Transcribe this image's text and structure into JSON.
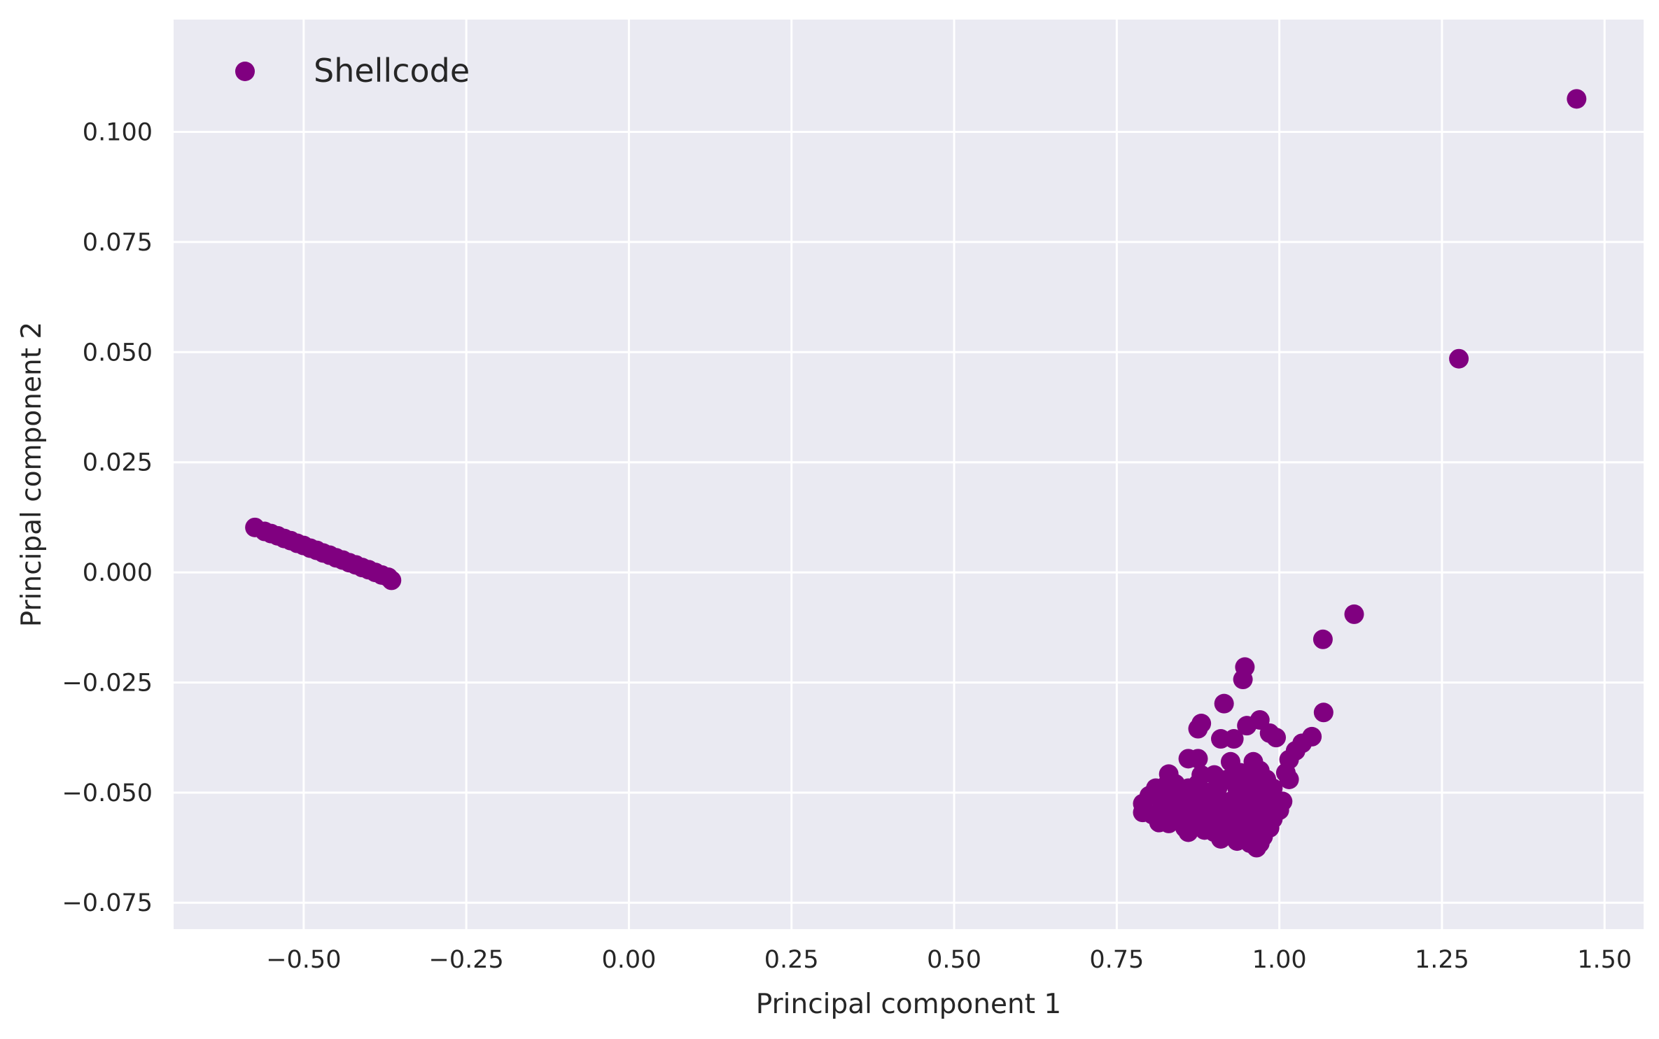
{
  "chart_data": {
    "type": "scatter",
    "xlabel": "Principal component 1",
    "ylabel": "Principal component 2",
    "xlim": [
      -0.7,
      1.56
    ],
    "ylim": [
      -0.081,
      0.1255
    ],
    "xticks": [
      -0.5,
      -0.25,
      0.0,
      0.25,
      0.5,
      0.75,
      1.0,
      1.25,
      1.5
    ],
    "xtick_labels": [
      "−0.50",
      "−0.25",
      "0.00",
      "0.25",
      "0.50",
      "0.75",
      "1.00",
      "1.25",
      "1.50"
    ],
    "yticks": [
      0.1,
      0.075,
      0.05,
      0.025,
      0.0,
      -0.025,
      -0.05,
      -0.075
    ],
    "ytick_labels": [
      "0.100",
      "0.075",
      "0.050",
      "0.025",
      "0.000",
      "−0.025",
      "−0.050",
      "−0.075"
    ],
    "grid": true,
    "legend_position": "top-left",
    "colors": {
      "plot_background": "#eaeaf2",
      "grid": "#ffffff",
      "marker": "#800080"
    },
    "series": [
      {
        "name": "Shellcode",
        "color": "#800080",
        "points": [
          [
            -0.575,
            0.0102
          ],
          [
            -0.56,
            0.0093
          ],
          [
            -0.55,
            0.0088
          ],
          [
            -0.54,
            0.0083
          ],
          [
            -0.53,
            0.0077
          ],
          [
            -0.52,
            0.0072
          ],
          [
            -0.51,
            0.0066
          ],
          [
            -0.5,
            0.0061
          ],
          [
            -0.49,
            0.0055
          ],
          [
            -0.48,
            0.005
          ],
          [
            -0.47,
            0.0044
          ],
          [
            -0.46,
            0.0039
          ],
          [
            -0.45,
            0.0033
          ],
          [
            -0.44,
            0.0028
          ],
          [
            -0.43,
            0.0022
          ],
          [
            -0.42,
            0.0017
          ],
          [
            -0.41,
            0.0011
          ],
          [
            -0.4,
            0.0006
          ],
          [
            -0.39,
            0.0
          ],
          [
            -0.38,
            -0.0006
          ],
          [
            -0.37,
            -0.0011
          ],
          [
            -0.365,
            -0.0018
          ],
          [
            1.457,
            0.1075
          ],
          [
            1.276,
            0.0485
          ],
          [
            1.115,
            -0.0095
          ],
          [
            1.067,
            -0.0152
          ],
          [
            1.068,
            -0.0318
          ],
          [
            0.947,
            -0.0215
          ],
          [
            0.944,
            -0.0243
          ],
          [
            0.915,
            -0.0298
          ],
          [
            0.97,
            -0.0335
          ],
          [
            0.95,
            -0.0348
          ],
          [
            0.88,
            -0.0343
          ],
          [
            0.875,
            -0.0355
          ],
          [
            0.91,
            -0.0378
          ],
          [
            0.93,
            -0.0378
          ],
          [
            0.985,
            -0.0365
          ],
          [
            0.995,
            -0.0375
          ],
          [
            1.05,
            -0.0373
          ],
          [
            1.035,
            -0.0388
          ],
          [
            1.025,
            -0.0405
          ],
          [
            1.015,
            -0.0425
          ],
          [
            1.01,
            -0.0455
          ],
          [
            1.015,
            -0.047
          ],
          [
            0.86,
            -0.0423
          ],
          [
            0.875,
            -0.0423
          ],
          [
            0.925,
            -0.043
          ],
          [
            0.96,
            -0.043
          ],
          [
            0.83,
            -0.0458
          ],
          [
            0.825,
            -0.0485
          ],
          [
            0.81,
            -0.049
          ],
          [
            0.8,
            -0.0507
          ],
          [
            0.79,
            -0.0525
          ],
          [
            0.79,
            -0.0545
          ],
          [
            0.805,
            -0.055
          ],
          [
            0.815,
            -0.0568
          ],
          [
            0.83,
            -0.057
          ],
          [
            0.845,
            -0.055
          ],
          [
            0.855,
            -0.058
          ],
          [
            0.86,
            -0.059
          ],
          [
            0.875,
            -0.0565
          ],
          [
            0.885,
            -0.0585
          ],
          [
            0.9,
            -0.059
          ],
          [
            0.91,
            -0.0605
          ],
          [
            0.925,
            -0.0595
          ],
          [
            0.94,
            -0.0605
          ],
          [
            0.955,
            -0.0615
          ],
          [
            0.965,
            -0.0625
          ],
          [
            0.97,
            -0.0615
          ],
          [
            0.975,
            -0.06
          ],
          [
            0.985,
            -0.058
          ],
          [
            0.99,
            -0.056
          ],
          [
            1.0,
            -0.054
          ],
          [
            1.005,
            -0.052
          ],
          [
            0.99,
            -0.049
          ],
          [
            0.98,
            -0.047
          ],
          [
            0.97,
            -0.045
          ],
          [
            0.95,
            -0.047
          ],
          [
            0.935,
            -0.049
          ],
          [
            0.92,
            -0.047
          ],
          [
            0.905,
            -0.049
          ],
          [
            0.89,
            -0.05
          ],
          [
            0.875,
            -0.048
          ],
          [
            0.86,
            -0.049
          ],
          [
            0.845,
            -0.051
          ],
          [
            0.83,
            -0.051
          ],
          [
            0.82,
            -0.053
          ],
          [
            0.835,
            -0.053
          ],
          [
            0.85,
            -0.053
          ],
          [
            0.865,
            -0.052
          ],
          [
            0.88,
            -0.051
          ],
          [
            0.895,
            -0.052
          ],
          [
            0.91,
            -0.052
          ],
          [
            0.925,
            -0.052
          ],
          [
            0.94,
            -0.051
          ],
          [
            0.955,
            -0.051
          ],
          [
            0.97,
            -0.051
          ],
          [
            0.985,
            -0.052
          ],
          [
            0.86,
            -0.055
          ],
          [
            0.875,
            -0.054
          ],
          [
            0.89,
            -0.055
          ],
          [
            0.905,
            -0.055
          ],
          [
            0.92,
            -0.055
          ],
          [
            0.935,
            -0.055
          ],
          [
            0.95,
            -0.055
          ],
          [
            0.965,
            -0.055
          ],
          [
            0.98,
            -0.055
          ],
          [
            0.87,
            -0.057
          ],
          [
            0.895,
            -0.057
          ],
          [
            0.915,
            -0.057
          ],
          [
            0.93,
            -0.058
          ],
          [
            0.945,
            -0.058
          ],
          [
            0.96,
            -0.058
          ],
          [
            0.975,
            -0.058
          ],
          [
            0.9,
            -0.046
          ],
          [
            0.88,
            -0.046
          ],
          [
            0.94,
            -0.0455
          ],
          [
            0.96,
            -0.048
          ],
          [
            0.815,
            -0.05
          ],
          [
            0.84,
            -0.048
          ],
          [
            0.95,
            -0.06
          ],
          [
            0.935,
            -0.061
          ],
          [
            0.965,
            -0.06
          ]
        ]
      }
    ]
  }
}
